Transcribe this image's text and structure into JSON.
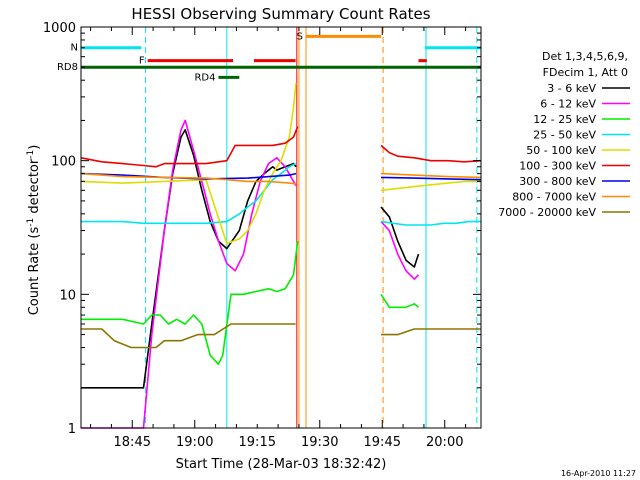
{
  "chart_data": {
    "type": "line",
    "title": "HESSI Observing Summary Count Rates",
    "xlabel": "Start Time (28-Mar-03 18:32:42)",
    "ylabel_main": "Count Rate (s",
    "ylabel_sup1": "-1",
    "ylabel_mid": " detector",
    "ylabel_sup2": "-1",
    "ylabel_end": ")",
    "y_scale": "log",
    "ylim": [
      1,
      1000
    ],
    "xlim_minutes": [
      0,
      96
    ],
    "y_ticks": [
      {
        "value": 1,
        "label": "1"
      },
      {
        "value": 10,
        "label": "10"
      },
      {
        "value": 100,
        "label": "100"
      },
      {
        "value": 1000,
        "label": "1000"
      }
    ],
    "x_ticks": [
      {
        "minute": 12.3,
        "label": "18:45"
      },
      {
        "minute": 27.3,
        "label": "19:00"
      },
      {
        "minute": 42.3,
        "label": "19:15"
      },
      {
        "minute": 57.3,
        "label": "19:30"
      },
      {
        "minute": 72.3,
        "label": "19:45"
      },
      {
        "minute": 87.3,
        "label": "20:00"
      }
    ],
    "legend_title": [
      "Det 1,3,4,5,6,9,",
      "FDecim 1, Att 0"
    ],
    "series": [
      {
        "name": "3 - 6 keV",
        "color": "#000000",
        "points": [
          [
            0,
            2
          ],
          [
            15,
            2
          ],
          [
            17,
            6
          ],
          [
            20,
            30
          ],
          [
            22,
            80
          ],
          [
            24,
            150
          ],
          [
            25,
            170
          ],
          [
            27,
            110
          ],
          [
            29,
            60
          ],
          [
            31,
            35
          ],
          [
            33,
            25
          ],
          [
            35,
            22
          ],
          [
            38,
            30
          ],
          [
            40,
            50
          ],
          [
            42,
            70
          ],
          [
            44,
            80
          ],
          [
            46,
            90
          ],
          [
            47,
            85
          ],
          [
            49,
            90
          ],
          [
            51,
            95
          ],
          [
            51.6,
            90
          ],
          [
            51.6,
            null
          ],
          [
            72,
            45
          ],
          [
            74,
            38
          ],
          [
            76,
            25
          ],
          [
            78,
            18
          ],
          [
            80,
            16
          ],
          [
            81,
            20
          ]
        ]
      },
      {
        "name": "6 - 12 keV",
        "color": "#ff00ff",
        "points": [
          [
            0,
            1
          ],
          [
            15,
            1
          ],
          [
            17,
            5
          ],
          [
            20,
            30
          ],
          [
            22,
            85
          ],
          [
            24,
            170
          ],
          [
            25,
            200
          ],
          [
            27,
            120
          ],
          [
            29,
            70
          ],
          [
            31,
            40
          ],
          [
            33,
            25
          ],
          [
            35,
            17
          ],
          [
            37,
            15
          ],
          [
            39,
            20
          ],
          [
            41,
            40
          ],
          [
            43,
            70
          ],
          [
            45,
            95
          ],
          [
            47,
            105
          ],
          [
            49,
            90
          ],
          [
            51,
            70
          ],
          [
            51.6,
            65
          ],
          [
            51.6,
            null
          ],
          [
            72,
            35
          ],
          [
            74,
            30
          ],
          [
            76,
            20
          ],
          [
            78,
            15
          ],
          [
            80,
            13
          ],
          [
            81,
            14
          ]
        ]
      },
      {
        "name": "12 - 25 keV",
        "color": "#00ee00",
        "points": [
          [
            0,
            6.5
          ],
          [
            10,
            6.5
          ],
          [
            15,
            6
          ],
          [
            17,
            7
          ],
          [
            19,
            7
          ],
          [
            21,
            6
          ],
          [
            23,
            6.5
          ],
          [
            25,
            6
          ],
          [
            27,
            7
          ],
          [
            29,
            6
          ],
          [
            31,
            3.5
          ],
          [
            33,
            3
          ],
          [
            34,
            3.5
          ],
          [
            36,
            10
          ],
          [
            39,
            10
          ],
          [
            42,
            10.5
          ],
          [
            45,
            11
          ],
          [
            47,
            10.5
          ],
          [
            49,
            11
          ],
          [
            51,
            14
          ],
          [
            52,
            25
          ],
          [
            52,
            null
          ],
          [
            72,
            10
          ],
          [
            74,
            8
          ],
          [
            76,
            8
          ],
          [
            78,
            8
          ],
          [
            80,
            8.5
          ],
          [
            81,
            8
          ]
        ]
      },
      {
        "name": "25 - 50 keV",
        "color": "#00e5ee",
        "points": [
          [
            0,
            35
          ],
          [
            5,
            35
          ],
          [
            10,
            35
          ],
          [
            15,
            34
          ],
          [
            20,
            34
          ],
          [
            25,
            34
          ],
          [
            30,
            34
          ],
          [
            35,
            35
          ],
          [
            38,
            40
          ],
          [
            40,
            45
          ],
          [
            42,
            50
          ],
          [
            44,
            60
          ],
          [
            46,
            72
          ],
          [
            48,
            80
          ],
          [
            50,
            90
          ],
          [
            51.5,
            95
          ],
          [
            51.5,
            null
          ],
          [
            72,
            35
          ],
          [
            75,
            34
          ],
          [
            78,
            33
          ],
          [
            81,
            33
          ],
          [
            84,
            33
          ],
          [
            87,
            34
          ],
          [
            90,
            34
          ],
          [
            93,
            35
          ],
          [
            96,
            35
          ]
        ]
      },
      {
        "name": "50 - 100 keV",
        "color": "#dddd00",
        "points": [
          [
            0,
            70
          ],
          [
            10,
            68
          ],
          [
            20,
            70
          ],
          [
            30,
            72
          ],
          [
            35,
            24
          ],
          [
            38,
            26
          ],
          [
            40,
            30
          ],
          [
            42,
            40
          ],
          [
            44,
            60
          ],
          [
            46,
            80
          ],
          [
            48,
            100
          ],
          [
            50,
            150
          ],
          [
            51,
            250
          ],
          [
            51.6,
            380
          ],
          [
            51.6,
            null
          ],
          [
            72,
            60
          ],
          [
            76,
            62
          ],
          [
            80,
            64
          ],
          [
            84,
            66
          ],
          [
            88,
            68
          ],
          [
            92,
            70
          ],
          [
            96,
            70
          ]
        ]
      },
      {
        "name": "100 - 300 keV",
        "color": "#ee0000",
        "points": [
          [
            0,
            105
          ],
          [
            5,
            98
          ],
          [
            10,
            95
          ],
          [
            15,
            92
          ],
          [
            18,
            90
          ],
          [
            20,
            95
          ],
          [
            25,
            95
          ],
          [
            30,
            95
          ],
          [
            35,
            100
          ],
          [
            37,
            130
          ],
          [
            40,
            130
          ],
          [
            43,
            130
          ],
          [
            46,
            130
          ],
          [
            49,
            135
          ],
          [
            51,
            150
          ],
          [
            52,
            180
          ],
          [
            52,
            null
          ],
          [
            72,
            130
          ],
          [
            74,
            115
          ],
          [
            76,
            108
          ],
          [
            80,
            105
          ],
          [
            84,
            100
          ],
          [
            88,
            100
          ],
          [
            92,
            98
          ],
          [
            96,
            100
          ]
        ]
      },
      {
        "name": "300 - 800 keV",
        "color": "#0000ee",
        "points": [
          [
            0,
            80
          ],
          [
            10,
            78
          ],
          [
            20,
            75
          ],
          [
            30,
            73
          ],
          [
            40,
            74
          ],
          [
            50,
            78
          ],
          [
            51.6,
            80
          ],
          [
            51.6,
            null
          ],
          [
            72,
            75
          ],
          [
            80,
            74
          ],
          [
            88,
            73
          ],
          [
            96,
            72
          ]
        ]
      },
      {
        "name": "800 - 7000 keV",
        "color": "#ff8c00",
        "points": [
          [
            0,
            80
          ],
          [
            10,
            76
          ],
          [
            20,
            75
          ],
          [
            30,
            74
          ],
          [
            35,
            72
          ],
          [
            40,
            70
          ],
          [
            45,
            70
          ],
          [
            50,
            68
          ],
          [
            51.6,
            67
          ],
          [
            51.6,
            null
          ],
          [
            72,
            80
          ],
          [
            80,
            78
          ],
          [
            88,
            76
          ],
          [
            96,
            75
          ]
        ]
      },
      {
        "name": "7000 - 20000 keV",
        "color": "#8b7500",
        "points": [
          [
            0,
            5.5
          ],
          [
            5,
            5.5
          ],
          [
            8,
            4.5
          ],
          [
            12,
            4
          ],
          [
            15,
            4
          ],
          [
            18,
            4
          ],
          [
            20,
            4.5
          ],
          [
            24,
            4.5
          ],
          [
            28,
            5
          ],
          [
            32,
            5
          ],
          [
            36,
            6
          ],
          [
            40,
            6
          ],
          [
            44,
            6
          ],
          [
            48,
            6
          ],
          [
            51.5,
            6
          ],
          [
            51.5,
            null
          ],
          [
            72,
            5
          ],
          [
            76,
            5
          ],
          [
            80,
            5.5
          ],
          [
            84,
            5.5
          ],
          [
            88,
            5.5
          ],
          [
            92,
            5.5
          ],
          [
            96,
            5.5
          ]
        ]
      }
    ],
    "flags": [
      {
        "name": "N",
        "color": "#00e5ee",
        "level": 700,
        "segments": [
          [
            0,
            14.5
          ],
          [
            82.5,
            96
          ]
        ]
      },
      {
        "name": "F",
        "color": "#ee0000",
        "level": 560,
        "segments": [
          [
            16,
            36.5
          ],
          [
            41.5,
            51.5
          ],
          [
            81,
            83
          ]
        ]
      },
      {
        "name": "S",
        "color": "#ff8c00",
        "level": 850,
        "segments": [
          [
            54,
            72
          ]
        ]
      },
      {
        "name": "RD8",
        "color": "#006400",
        "level": 500,
        "segments": [
          [
            0,
            96
          ]
        ]
      },
      {
        "name": "RD4",
        "color": "#006400",
        "level": 420,
        "segments": [
          [
            33,
            38
          ]
        ]
      }
    ],
    "vlines": [
      {
        "minute": 15.5,
        "color": "#00e5ee",
        "style": "dashed"
      },
      {
        "minute": 35,
        "color": "#00e5ee",
        "style": "solid"
      },
      {
        "minute": 51.8,
        "color": "#ee0000",
        "style": "solid"
      },
      {
        "minute": 52.3,
        "color": "#ff8c00",
        "style": "solid"
      },
      {
        "minute": 54,
        "color": "#ff8c00",
        "style": "solid"
      },
      {
        "minute": 72.5,
        "color": "#ff8c00",
        "style": "dashed"
      },
      {
        "minute": 82.8,
        "color": "#00e5ee",
        "style": "solid"
      },
      {
        "minute": 95,
        "color": "#00e5ee",
        "style": "dashed"
      }
    ],
    "footer_timestamp": "16-Apr-2010 11:27"
  }
}
